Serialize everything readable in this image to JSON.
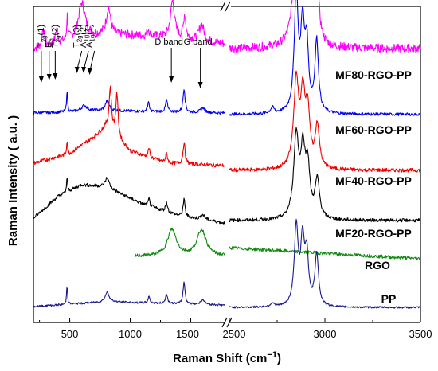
{
  "chart_data": {
    "type": "line",
    "xlabel": "Raman Shift (cm",
    "xlabel_sup": "−1",
    "xlabel_end": ")",
    "ylabel": "Raman Intensity ( a.u. )",
    "x_segments": [
      {
        "xlim": [
          200,
          1780
        ],
        "ticks": [
          500,
          1000,
          1500
        ]
      },
      {
        "xlim": [
          2500,
          3500
        ],
        "ticks": [
          2500,
          3000,
          3500
        ]
      }
    ],
    "tick_labels": [
      "500",
      "1000",
      "1500",
      "2500",
      "3000",
      "3500"
    ],
    "series": [
      {
        "name": "MF80-RGO-PP",
        "color": "#ff00ff",
        "offset": 5.3,
        "bg_left": [
          [
            200,
            0.3
          ],
          [
            500,
            0.45
          ],
          [
            800,
            0.6
          ],
          [
            1200,
            0.55
          ],
          [
            1780,
            0.4
          ]
        ],
        "peaks_left": [
          [
            280,
            0.4,
            10
          ],
          [
            390,
            0.3,
            10
          ],
          [
            480,
            0.5,
            6
          ],
          [
            600,
            0.75,
            35
          ],
          [
            820,
            0.55,
            20
          ],
          [
            1150,
            0.15,
            10
          ],
          [
            1350,
            0.8,
            20
          ],
          [
            1450,
            0.5,
            12
          ],
          [
            1590,
            0.35,
            25
          ]
        ],
        "bg_right": 0.3,
        "peaks_right": [
          [
            2850,
            2.2,
            18
          ],
          [
            2885,
            1.9,
            14
          ],
          [
            2920,
            1.7,
            15
          ],
          [
            2960,
            1.0,
            14
          ]
        ],
        "noise": 0.09
      },
      {
        "name": "MF60-RGO-PP",
        "color": "#0000ee",
        "offset": 4.1,
        "bg_left": [
          [
            200,
            0.15
          ],
          [
            800,
            0.2
          ],
          [
            1780,
            0.15
          ]
        ],
        "peaks_left": [
          [
            478,
            0.45,
            5
          ],
          [
            620,
            0.12,
            30
          ],
          [
            810,
            0.2,
            20
          ],
          [
            1150,
            0.2,
            8
          ],
          [
            1300,
            0.25,
            10
          ],
          [
            1445,
            0.5,
            10
          ],
          [
            1600,
            0.1,
            20
          ]
        ],
        "bg_right": 0.12,
        "peaks_right": [
          [
            2850,
            2.5,
            12
          ],
          [
            2883,
            1.7,
            12
          ],
          [
            2905,
            1.3,
            11
          ],
          [
            2957,
            1.5,
            11
          ],
          [
            2725,
            0.12,
            12
          ]
        ],
        "noise": 0.03
      },
      {
        "name": "MF40-RGO-PP",
        "color": "#ee0000",
        "offset": 2.85,
        "bg_left": [
          [
            200,
            0.35
          ],
          [
            500,
            0.55
          ],
          [
            700,
            0.9
          ],
          [
            800,
            1.1
          ],
          [
            1000,
            0.6
          ],
          [
            1300,
            0.35
          ],
          [
            1780,
            0.3
          ]
        ],
        "peaks_left": [
          [
            478,
            0.3,
            5
          ],
          [
            835,
            0.9,
            12
          ],
          [
            890,
            0.9,
            12
          ],
          [
            1155,
            0.2,
            8
          ],
          [
            1300,
            0.2,
            10
          ],
          [
            1445,
            0.45,
            10
          ]
        ],
        "bg_right": 0.2,
        "peaks_right": [
          [
            2850,
            1.8,
            16
          ],
          [
            2885,
            1.4,
            14
          ],
          [
            2910,
            1.1,
            13
          ],
          [
            2960,
            0.9,
            13
          ]
        ],
        "noise": 0.04
      },
      {
        "name": "MF20-RGO-PP",
        "color": "#000000",
        "offset": 1.75,
        "bg_left": [
          [
            200,
            0.3
          ],
          [
            400,
            0.75
          ],
          [
            600,
            1.0
          ],
          [
            800,
            0.95
          ],
          [
            1100,
            0.6
          ],
          [
            1400,
            0.35
          ],
          [
            1780,
            0.2
          ]
        ],
        "peaks_left": [
          [
            478,
            0.3,
            5
          ],
          [
            810,
            0.2,
            20
          ],
          [
            1155,
            0.15,
            8
          ],
          [
            1300,
            0.2,
            10
          ],
          [
            1445,
            0.35,
            10
          ],
          [
            1600,
            0.1,
            20
          ]
        ],
        "bg_right": 0.25,
        "peaks_right": [
          [
            2850,
            1.7,
            16
          ],
          [
            2885,
            1.3,
            14
          ],
          [
            2910,
            1.0,
            13
          ],
          [
            2960,
            0.8,
            14
          ]
        ],
        "noise": 0.035
      },
      {
        "name": "RGO",
        "color": "#108a10",
        "offset": 1.15,
        "start_left": 1040,
        "bg_left": [
          [
            1040,
            0.1
          ],
          [
            1780,
            0.1
          ]
        ],
        "peaks_left": [
          [
            1345,
            0.55,
            45
          ],
          [
            1590,
            0.55,
            45
          ]
        ],
        "bg_right_line": [
          [
            2500,
            0.28
          ],
          [
            3500,
            0.05
          ]
        ],
        "peaks_right": [],
        "noise": 0.035
      },
      {
        "name": "PP",
        "color": "#1a1a8c",
        "offset": 0.15,
        "bg_left": [
          [
            200,
            0.05
          ],
          [
            800,
            0.15
          ],
          [
            1780,
            0.08
          ]
        ],
        "peaks_left": [
          [
            478,
            0.4,
            5
          ],
          [
            810,
            0.2,
            20
          ],
          [
            1155,
            0.15,
            8
          ],
          [
            1300,
            0.2,
            10
          ],
          [
            1445,
            0.45,
            10
          ],
          [
            1600,
            0.1,
            20
          ]
        ],
        "bg_right": 0.03,
        "peaks_right": [
          [
            2850,
            1.65,
            12
          ],
          [
            2883,
            1.3,
            12
          ],
          [
            2905,
            1.0,
            11
          ],
          [
            2957,
            1.1,
            11
          ],
          [
            2725,
            0.08,
            12
          ]
        ],
        "noise": 0.02
      }
    ],
    "annotations": [
      {
        "label": "T",
        "sub": "2g",
        "tail": "(1)",
        "x": 265
      },
      {
        "label": "E",
        "sub": "g",
        "tail": "",
        "x": 330
      },
      {
        "label": "T",
        "sub": "2g",
        "tail": "(2)",
        "x": 380
      },
      {
        "label": "T",
        "sub": "2g",
        "tail": "(3)",
        "x": 560
      },
      {
        "label": "A",
        "sub": "1g",
        "tail": "(2)",
        "x": 615
      },
      {
        "label": "A",
        "sub": "1g",
        "tail": "(1)",
        "x": 665
      },
      {
        "label": "D band",
        "sub": "",
        "tail": "",
        "x": 1340
      },
      {
        "label": "G band",
        "sub": "",
        "tail": "",
        "x": 1580
      }
    ],
    "grid": false
  }
}
